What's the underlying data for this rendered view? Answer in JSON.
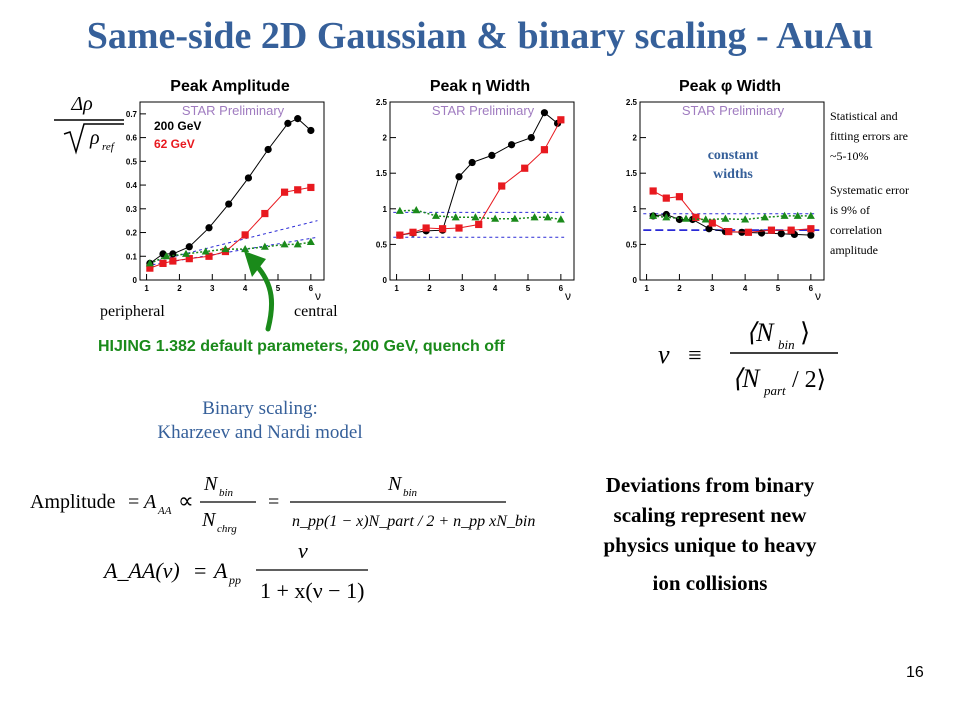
{
  "slide": {
    "title": "Same-side 2D Gaussian & binary scaling - AuAu",
    "page_number": "16"
  },
  "y_axis_label": {
    "numerator": "Δρ",
    "denominator": "ρ",
    "subscript": "ref"
  },
  "panels": [
    {
      "title": "Peak Amplitude",
      "subtitle": "STAR Preliminary"
    },
    {
      "title": "Peak η Width",
      "subtitle": "STAR Preliminary"
    },
    {
      "title": "Peak φ Width",
      "subtitle": "STAR Preliminary"
    }
  ],
  "legend": {
    "e200": {
      "label": "200 GeV",
      "color": "#000000"
    },
    "e62": {
      "label": "62 GeV",
      "color": "#e8191f"
    }
  },
  "annotations": {
    "peripheral": "peripheral",
    "central": "central",
    "constant_widths_line1": "constant",
    "constant_widths_line2": "widths",
    "hijing": "HIJING 1.382 default parameters, 200 GeV, quench off",
    "binary_line1": "Binary scaling:",
    "binary_line2": "Kharzeev and Nardi model",
    "dev_line1": "Deviations from binary",
    "dev_line2": "scaling represent new",
    "dev_line3": "physics unique to heavy",
    "dev_line4": "ion collisions",
    "errors_lines": [
      "Statistical and",
      "fitting errors are",
      "~5-10%",
      "",
      "Systematic error",
      "is 9% of",
      "correlation",
      "amplitude"
    ]
  },
  "colors": {
    "title_blue": "#36609a",
    "series_black": "#000000",
    "series_red": "#e8191f",
    "hijing_green": "#1a8a1a",
    "model_blue": "#2a2ad6"
  },
  "chart_data": [
    {
      "type": "line",
      "title": "Peak Amplitude",
      "xlabel": "ν",
      "ylim": [
        0,
        0.75
      ],
      "xlim": [
        0.8,
        6.4
      ],
      "yticks": [
        0,
        0.1,
        0.2,
        0.3,
        0.4,
        0.5,
        0.6,
        0.7
      ],
      "ytick_labels": [
        "0",
        "0.1",
        "0.2",
        "0.3",
        "0.4",
        "0.5",
        "0.6",
        "0.7"
      ],
      "xticks": [
        1,
        2,
        3,
        4,
        5,
        6
      ],
      "series": [
        {
          "name": "200 GeV",
          "marker": "circle",
          "color": "#000000",
          "x": [
            1.1,
            1.5,
            1.8,
            2.3,
            2.9,
            3.5,
            4.1,
            4.7,
            5.3,
            5.6,
            6.0
          ],
          "y": [
            0.07,
            0.11,
            0.11,
            0.14,
            0.22,
            0.32,
            0.43,
            0.55,
            0.66,
            0.68,
            0.63
          ]
        },
        {
          "name": "62 GeV",
          "marker": "square",
          "color": "#e8191f",
          "x": [
            1.1,
            1.5,
            1.8,
            2.3,
            2.9,
            3.4,
            4.0,
            4.6,
            5.2,
            5.6,
            6.0
          ],
          "y": [
            0.05,
            0.07,
            0.08,
            0.09,
            0.1,
            0.12,
            0.19,
            0.28,
            0.37,
            0.38,
            0.39
          ]
        },
        {
          "name": "HIJING",
          "marker": "triangle",
          "color": "#1a8a1a",
          "x": [
            1.1,
            1.6,
            2.2,
            2.8,
            3.4,
            4.0,
            4.6,
            5.2,
            5.6,
            6.0
          ],
          "y": [
            0.07,
            0.1,
            0.11,
            0.12,
            0.13,
            0.13,
            0.14,
            0.15,
            0.15,
            0.16
          ]
        }
      ],
      "model_lines": [
        {
          "style": "dashed",
          "x": [
            1.0,
            6.2
          ],
          "y": [
            0.07,
            0.25
          ]
        },
        {
          "style": "dashed",
          "x": [
            1.0,
            6.2
          ],
          "y": [
            0.06,
            0.18
          ]
        }
      ]
    },
    {
      "type": "line",
      "title": "Peak η Width",
      "xlabel": "ν",
      "ylim": [
        0,
        2.5
      ],
      "xlim": [
        0.8,
        6.4
      ],
      "yticks": [
        0,
        0.5,
        1,
        1.5,
        2,
        2.5
      ],
      "ytick_labels": [
        "0",
        "0.5",
        "1",
        "1.5",
        "2",
        "2.5"
      ],
      "xticks": [
        1,
        2,
        3,
        4,
        5,
        6
      ],
      "series": [
        {
          "name": "200 GeV",
          "marker": "circle",
          "color": "#000000",
          "x": [
            1.1,
            1.5,
            1.9,
            2.4,
            2.9,
            3.3,
            3.9,
            4.5,
            5.1,
            5.5,
            5.9
          ],
          "y": [
            0.63,
            0.66,
            0.69,
            0.7,
            1.45,
            1.65,
            1.75,
            1.9,
            2.0,
            2.35,
            2.2
          ]
        },
        {
          "name": "62 GeV",
          "marker": "square",
          "color": "#e8191f",
          "x": [
            1.1,
            1.5,
            1.9,
            2.4,
            2.9,
            3.5,
            4.2,
            4.9,
            5.5,
            6.0
          ],
          "y": [
            0.63,
            0.67,
            0.73,
            0.72,
            0.73,
            0.78,
            1.32,
            1.57,
            1.83,
            2.25
          ]
        },
        {
          "name": "HIJING",
          "marker": "triangle",
          "color": "#1a8a1a",
          "x": [
            1.1,
            1.6,
            2.2,
            2.8,
            3.4,
            4.0,
            4.6,
            5.2,
            5.6,
            6.0
          ],
          "y": [
            0.97,
            0.98,
            0.9,
            0.88,
            0.88,
            0.86,
            0.86,
            0.88,
            0.88,
            0.85
          ]
        }
      ],
      "model_lines": [
        {
          "style": "dashed",
          "x": [
            0.9,
            6.1
          ],
          "y": [
            0.95,
            0.95
          ]
        },
        {
          "style": "dashed",
          "x": [
            0.9,
            6.1
          ],
          "y": [
            0.6,
            0.6
          ]
        }
      ]
    },
    {
      "type": "line",
      "title": "Peak φ Width",
      "xlabel": "ν",
      "ylim": [
        0,
        2.5
      ],
      "xlim": [
        0.8,
        6.4
      ],
      "yticks": [
        0,
        0.5,
        1,
        1.5,
        2,
        2.5
      ],
      "ytick_labels": [
        "0",
        "0.5",
        "1",
        "1.5",
        "2",
        "2.5"
      ],
      "xticks": [
        1,
        2,
        3,
        4,
        5,
        6
      ],
      "series": [
        {
          "name": "200 GeV",
          "marker": "circle",
          "color": "#000000",
          "x": [
            1.2,
            1.6,
            2.0,
            2.4,
            2.9,
            3.4,
            3.9,
            4.5,
            5.1,
            5.5,
            6.0
          ],
          "y": [
            0.9,
            0.92,
            0.85,
            0.85,
            0.72,
            0.68,
            0.67,
            0.66,
            0.65,
            0.64,
            0.63
          ]
        },
        {
          "name": "62 GeV",
          "marker": "square",
          "color": "#e8191f",
          "x": [
            1.2,
            1.6,
            2.0,
            2.5,
            3.0,
            3.5,
            4.1,
            4.8,
            5.4,
            6.0
          ],
          "y": [
            1.25,
            1.15,
            1.17,
            0.88,
            0.8,
            0.68,
            0.67,
            0.7,
            0.7,
            0.72
          ]
        },
        {
          "name": "HIJING",
          "marker": "triangle",
          "color": "#1a8a1a",
          "x": [
            1.2,
            1.6,
            2.2,
            2.8,
            3.4,
            4.0,
            4.6,
            5.2,
            5.6,
            6.0
          ],
          "y": [
            0.9,
            0.88,
            0.86,
            0.85,
            0.86,
            0.85,
            0.88,
            0.9,
            0.9,
            0.9
          ]
        }
      ],
      "model_lines": [
        {
          "style": "longdash",
          "x": [
            0.9,
            6.3
          ],
          "y": [
            0.7,
            0.7
          ]
        },
        {
          "style": "dashed",
          "x": [
            0.9,
            6.1
          ],
          "y": [
            0.93,
            0.93
          ]
        }
      ]
    }
  ],
  "formulas": {
    "nu_def": {
      "lhs": "ν",
      "equiv": "≡",
      "num": "⟨N",
      "num_sub": "bin",
      "num_close": "⟩",
      "den": "⟨N",
      "den_sub": "part",
      "den_tail": "/ 2⟩"
    },
    "amplitude": {
      "prefix": "Amplitude",
      "eq": "=",
      "A": "A",
      "A_sub": "AA",
      "prop": "∝",
      "frac1_num": "N",
      "frac1_num_sub": "bin",
      "frac1_den": "N",
      "frac1_den_sub": "chrg",
      "eq2": "=",
      "frac2_num": "N",
      "frac2_num_sub": "bin",
      "frac2_den": "n_pp(1 − x)N_part / 2 + n_pp xN_bin"
    },
    "model": {
      "lhs": "A_AA(ν)",
      "eq": "=",
      "A": "A",
      "A_sub": "pp",
      "num": "ν",
      "den": "1 + x(ν − 1)"
    }
  }
}
